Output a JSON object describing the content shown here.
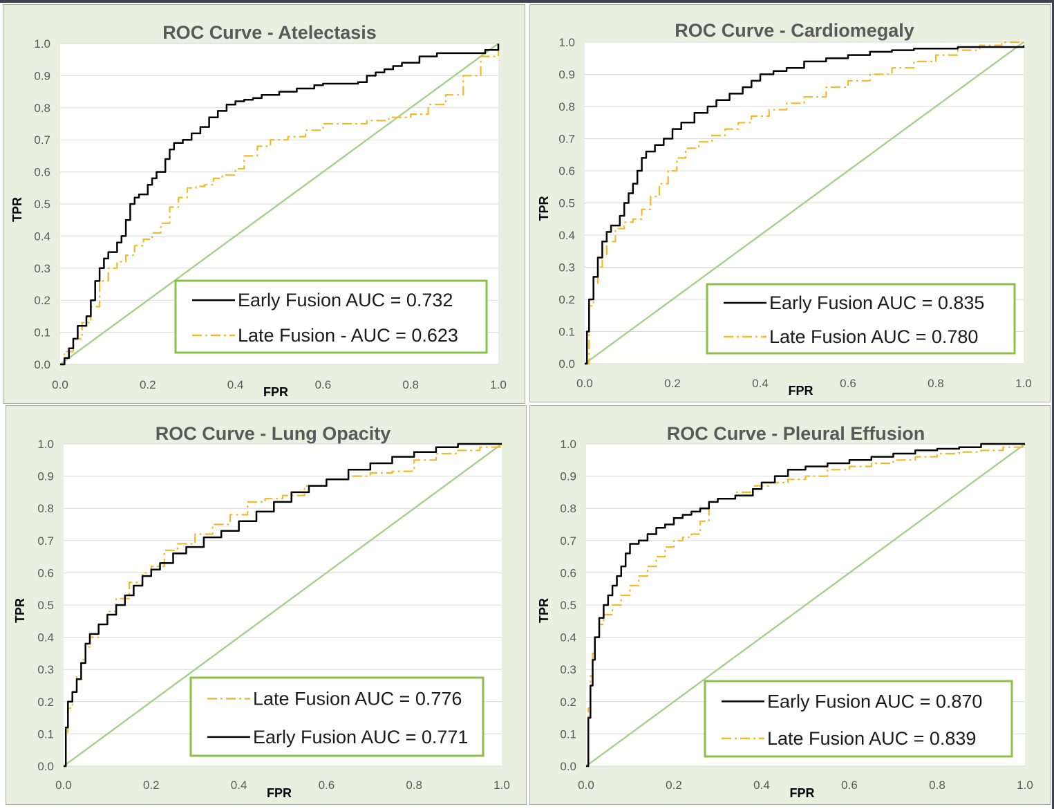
{
  "chart_data": [
    {
      "type": "line",
      "title": "ROC Curve - Atelectasis",
      "xlabel": "FPR",
      "ylabel": "TPR",
      "xlim": [
        0,
        1
      ],
      "ylim": [
        0,
        1
      ],
      "x_ticks": [
        "0.0",
        "0.2",
        "0.4",
        "0.6",
        "0.8",
        "1.0"
      ],
      "y_ticks": [
        "0.0",
        "0.1",
        "0.2",
        "0.3",
        "0.4",
        "0.5",
        "0.6",
        "0.7",
        "0.8",
        "0.9",
        "1.0"
      ],
      "grid": true,
      "legend_position": "bottom-right",
      "colors": {
        "early": "#000000",
        "late": "#f2b928",
        "diagonal": "#a9d18e"
      },
      "series": [
        {
          "name": "Early Fusion AUC = 0.732",
          "style": "solid",
          "color": "#000000",
          "x": [
            0,
            0.01,
            0.02,
            0.03,
            0.04,
            0.06,
            0.07,
            0.08,
            0.09,
            0.1,
            0.11,
            0.13,
            0.14,
            0.15,
            0.16,
            0.17,
            0.18,
            0.2,
            0.21,
            0.22,
            0.24,
            0.25,
            0.26,
            0.28,
            0.3,
            0.32,
            0.34,
            0.36,
            0.38,
            0.4,
            0.42,
            0.44,
            0.46,
            0.5,
            0.54,
            0.58,
            0.6,
            0.65,
            0.68,
            0.7,
            0.72,
            0.74,
            0.76,
            0.78,
            0.82,
            0.86,
            0.9,
            0.95,
            0.97,
            1.0
          ],
          "y": [
            0,
            0.02,
            0.05,
            0.08,
            0.12,
            0.15,
            0.2,
            0.26,
            0.3,
            0.33,
            0.35,
            0.38,
            0.4,
            0.45,
            0.5,
            0.52,
            0.53,
            0.56,
            0.58,
            0.6,
            0.64,
            0.67,
            0.69,
            0.7,
            0.72,
            0.74,
            0.77,
            0.79,
            0.81,
            0.82,
            0.825,
            0.83,
            0.84,
            0.85,
            0.86,
            0.87,
            0.875,
            0.875,
            0.88,
            0.9,
            0.91,
            0.92,
            0.93,
            0.94,
            0.96,
            0.97,
            0.97,
            0.97,
            0.98,
            1.0
          ]
        },
        {
          "name": "Late Fusion - AUC = 0.623",
          "style": "dash-dot",
          "color": "#f2b928",
          "x": [
            0,
            0.01,
            0.03,
            0.05,
            0.07,
            0.09,
            0.11,
            0.13,
            0.15,
            0.17,
            0.19,
            0.21,
            0.23,
            0.25,
            0.27,
            0.29,
            0.31,
            0.33,
            0.35,
            0.37,
            0.4,
            0.42,
            0.45,
            0.48,
            0.52,
            0.56,
            0.6,
            0.65,
            0.7,
            0.75,
            0.8,
            0.84,
            0.88,
            0.92,
            0.96,
            1.0
          ],
          "y": [
            0,
            0.04,
            0.08,
            0.13,
            0.18,
            0.26,
            0.3,
            0.32,
            0.34,
            0.37,
            0.39,
            0.41,
            0.44,
            0.49,
            0.52,
            0.55,
            0.555,
            0.56,
            0.58,
            0.59,
            0.61,
            0.65,
            0.68,
            0.7,
            0.71,
            0.73,
            0.75,
            0.75,
            0.76,
            0.77,
            0.78,
            0.81,
            0.84,
            0.9,
            0.96,
            1.0
          ]
        }
      ]
    },
    {
      "type": "line",
      "title": "ROC Curve - Cardiomegaly",
      "xlabel": "FPR",
      "ylabel": "TPR",
      "xlim": [
        0,
        1
      ],
      "ylim": [
        0,
        1
      ],
      "x_ticks": [
        "0.0",
        "0.2",
        "0.4",
        "0.6",
        "0.8",
        "1.0"
      ],
      "y_ticks": [
        "0.0",
        "0.1",
        "0.2",
        "0.3",
        "0.4",
        "0.5",
        "0.6",
        "0.7",
        "0.8",
        "0.9",
        "1.0"
      ],
      "grid": true,
      "legend_position": "bottom-right",
      "colors": {
        "early": "#000000",
        "late": "#f2b928",
        "diagonal": "#a9d18e"
      },
      "series": [
        {
          "name": "Early Fusion AUC = 0.835",
          "style": "solid",
          "color": "#000000",
          "x": [
            0,
            0.005,
            0.01,
            0.02,
            0.03,
            0.04,
            0.05,
            0.06,
            0.08,
            0.09,
            0.1,
            0.11,
            0.12,
            0.13,
            0.14,
            0.16,
            0.18,
            0.2,
            0.22,
            0.25,
            0.28,
            0.3,
            0.33,
            0.36,
            0.38,
            0.4,
            0.43,
            0.46,
            0.5,
            0.55,
            0.6,
            0.65,
            0.7,
            0.75,
            0.8,
            0.85,
            0.9,
            0.95,
            1.0
          ],
          "y": [
            0,
            0.1,
            0.2,
            0.27,
            0.33,
            0.38,
            0.41,
            0.43,
            0.46,
            0.5,
            0.53,
            0.56,
            0.6,
            0.64,
            0.66,
            0.68,
            0.7,
            0.73,
            0.75,
            0.78,
            0.8,
            0.82,
            0.84,
            0.86,
            0.88,
            0.9,
            0.91,
            0.92,
            0.94,
            0.95,
            0.96,
            0.97,
            0.975,
            0.98,
            0.98,
            0.985,
            0.985,
            0.985,
            0.99
          ]
        },
        {
          "name": "Late Fusion AUC = 0.780",
          "style": "dash-dot",
          "color": "#f2b928",
          "x": [
            0,
            0.01,
            0.02,
            0.03,
            0.04,
            0.05,
            0.07,
            0.09,
            0.11,
            0.13,
            0.15,
            0.17,
            0.19,
            0.21,
            0.23,
            0.26,
            0.29,
            0.32,
            0.35,
            0.38,
            0.42,
            0.46,
            0.5,
            0.55,
            0.6,
            0.65,
            0.7,
            0.75,
            0.8,
            0.85,
            0.9,
            0.95,
            1.0
          ],
          "y": [
            0,
            0.18,
            0.25,
            0.3,
            0.34,
            0.38,
            0.42,
            0.44,
            0.45,
            0.48,
            0.52,
            0.56,
            0.6,
            0.64,
            0.67,
            0.69,
            0.71,
            0.73,
            0.75,
            0.77,
            0.79,
            0.81,
            0.83,
            0.86,
            0.88,
            0.9,
            0.92,
            0.94,
            0.96,
            0.975,
            0.99,
            1.0,
            1.0
          ]
        }
      ]
    },
    {
      "type": "line",
      "title": "ROC Curve - Lung Opacity",
      "xlabel": "FPR",
      "ylabel": "TPR",
      "xlim": [
        0,
        1
      ],
      "ylim": [
        0,
        1
      ],
      "x_ticks": [
        "0.0",
        "0.2",
        "0.4",
        "0.6",
        "0.8",
        "1.0"
      ],
      "y_ticks": [
        "0.0",
        "0.1",
        "0.2",
        "0.3",
        "0.4",
        "0.5",
        "0.6",
        "0.7",
        "0.8",
        "0.9",
        "1.0"
      ],
      "grid": true,
      "legend_position": "bottom-right",
      "colors": {
        "early": "#000000",
        "late": "#f2b928",
        "diagonal": "#a9d18e"
      },
      "series": [
        {
          "name": "Late Fusion AUC = 0.776",
          "style": "dash-dot",
          "color": "#f2b928",
          "x": [
            0,
            0.005,
            0.01,
            0.02,
            0.03,
            0.04,
            0.05,
            0.06,
            0.08,
            0.1,
            0.12,
            0.15,
            0.18,
            0.2,
            0.23,
            0.26,
            0.3,
            0.34,
            0.38,
            0.42,
            0.46,
            0.5,
            0.55,
            0.6,
            0.65,
            0.7,
            0.75,
            0.8,
            0.85,
            0.9,
            0.95,
            1.0
          ],
          "y": [
            0,
            0.1,
            0.18,
            0.23,
            0.28,
            0.33,
            0.37,
            0.4,
            0.44,
            0.48,
            0.52,
            0.57,
            0.6,
            0.62,
            0.67,
            0.69,
            0.72,
            0.75,
            0.78,
            0.82,
            0.83,
            0.84,
            0.87,
            0.89,
            0.9,
            0.91,
            0.915,
            0.95,
            0.97,
            0.98,
            0.99,
            1.0
          ]
        },
        {
          "name": "Early Fusion AUC = 0.771",
          "style": "solid",
          "color": "#000000",
          "x": [
            0,
            0.005,
            0.01,
            0.02,
            0.03,
            0.04,
            0.05,
            0.06,
            0.08,
            0.1,
            0.12,
            0.14,
            0.16,
            0.18,
            0.2,
            0.22,
            0.25,
            0.28,
            0.32,
            0.36,
            0.4,
            0.44,
            0.48,
            0.52,
            0.56,
            0.6,
            0.65,
            0.7,
            0.75,
            0.8,
            0.85,
            0.9,
            0.95,
            1.0
          ],
          "y": [
            0,
            0.12,
            0.2,
            0.23,
            0.27,
            0.32,
            0.38,
            0.41,
            0.44,
            0.47,
            0.5,
            0.53,
            0.56,
            0.59,
            0.61,
            0.63,
            0.66,
            0.68,
            0.71,
            0.73,
            0.76,
            0.79,
            0.82,
            0.85,
            0.87,
            0.89,
            0.92,
            0.94,
            0.96,
            0.975,
            0.99,
            1.0,
            1.0,
            1.0
          ]
        }
      ]
    },
    {
      "type": "line",
      "title": "ROC Curve - Pleural Effusion",
      "xlabel": "FPR",
      "ylabel": "TPR",
      "xlim": [
        0,
        1
      ],
      "ylim": [
        0,
        1
      ],
      "x_ticks": [
        "0.0",
        "0.2",
        "0.4",
        "0.6",
        "0.8",
        "1.0"
      ],
      "y_ticks": [
        "0.0",
        "0.1",
        "0.2",
        "0.3",
        "0.4",
        "0.5",
        "0.6",
        "0.7",
        "0.8",
        "0.9",
        "1.0"
      ],
      "grid": true,
      "legend_position": "bottom-right",
      "colors": {
        "early": "#000000",
        "late": "#f2b928",
        "diagonal": "#a9d18e"
      },
      "series": [
        {
          "name": "Early Fusion AUC = 0.870",
          "style": "solid",
          "color": "#000000",
          "x": [
            0,
            0.005,
            0.01,
            0.015,
            0.02,
            0.03,
            0.04,
            0.05,
            0.06,
            0.07,
            0.08,
            0.09,
            0.1,
            0.12,
            0.14,
            0.16,
            0.18,
            0.2,
            0.22,
            0.24,
            0.26,
            0.28,
            0.3,
            0.34,
            0.38,
            0.4,
            0.43,
            0.46,
            0.5,
            0.55,
            0.6,
            0.65,
            0.7,
            0.75,
            0.8,
            0.85,
            0.9,
            0.95,
            1.0
          ],
          "y": [
            0,
            0.15,
            0.25,
            0.33,
            0.4,
            0.46,
            0.5,
            0.53,
            0.56,
            0.59,
            0.62,
            0.66,
            0.69,
            0.7,
            0.72,
            0.74,
            0.75,
            0.77,
            0.78,
            0.79,
            0.8,
            0.82,
            0.83,
            0.84,
            0.86,
            0.88,
            0.9,
            0.92,
            0.93,
            0.94,
            0.95,
            0.96,
            0.97,
            0.98,
            0.985,
            0.99,
            1.0,
            1.0,
            1.0
          ]
        },
        {
          "name": "Late Fusion AUC = 0.839",
          "style": "dash-dot",
          "color": "#f2b928",
          "x": [
            0,
            0.005,
            0.01,
            0.015,
            0.02,
            0.03,
            0.04,
            0.06,
            0.08,
            0.1,
            0.12,
            0.14,
            0.16,
            0.18,
            0.2,
            0.22,
            0.24,
            0.26,
            0.28,
            0.3,
            0.34,
            0.38,
            0.42,
            0.46,
            0.5,
            0.55,
            0.6,
            0.65,
            0.7,
            0.75,
            0.8,
            0.85,
            0.9,
            0.95,
            1.0
          ],
          "y": [
            0,
            0.18,
            0.28,
            0.35,
            0.4,
            0.44,
            0.47,
            0.5,
            0.53,
            0.56,
            0.59,
            0.62,
            0.65,
            0.68,
            0.7,
            0.71,
            0.72,
            0.76,
            0.82,
            0.83,
            0.85,
            0.87,
            0.88,
            0.89,
            0.9,
            0.92,
            0.93,
            0.94,
            0.95,
            0.96,
            0.97,
            0.975,
            0.98,
            0.99,
            1.0
          ]
        }
      ]
    }
  ]
}
